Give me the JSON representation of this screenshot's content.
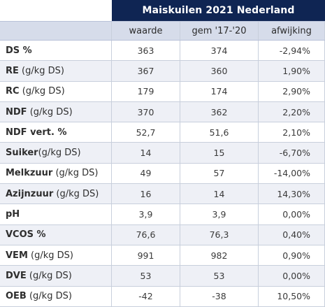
{
  "table": {
    "title": "Maiskuilen 2021 Nederland",
    "headers": [
      "waarde",
      "gem '17-'20",
      "afwijking"
    ],
    "rows": [
      {
        "name": "DS %",
        "unit": "",
        "waarde": "363",
        "gem": "374",
        "afwijking": "-2,94%"
      },
      {
        "name": "RE",
        "unit": " (g/kg DS)",
        "waarde": "367",
        "gem": "360",
        "afwijking": "1,90%"
      },
      {
        "name": "RC",
        "unit": " (g/kg DS)",
        "waarde": "179",
        "gem": "174",
        "afwijking": "2,90%"
      },
      {
        "name": "NDF",
        "unit": " (g/kg DS)",
        "waarde": "370",
        "gem": "362",
        "afwijking": "2,20%"
      },
      {
        "name": "NDF vert. %",
        "unit": "",
        "waarde": "52,7",
        "gem": "51,6",
        "afwijking": "2,10%"
      },
      {
        "name": "Suiker",
        "unit": "(g/kg DS)",
        "waarde": "14",
        "gem": "15",
        "afwijking": "-6,70%"
      },
      {
        "name": "Melkzuur",
        "unit": " (g/kg DS)",
        "waarde": "49",
        "gem": "57",
        "afwijking": "-14,00%"
      },
      {
        "name": "Azijnzuur",
        "unit": " (g/kg DS)",
        "waarde": "16",
        "gem": "14",
        "afwijking": "14,30%"
      },
      {
        "name": "pH",
        "unit": "",
        "waarde": "3,9",
        "gem": "3,9",
        "afwijking": "0,00%"
      },
      {
        "name": "VCOS %",
        "unit": "",
        "waarde": "76,6",
        "gem": "76,3",
        "afwijking": "0,40%"
      },
      {
        "name": "VEM",
        "unit": " (g/kg DS)",
        "waarde": "991",
        "gem": "982",
        "afwijking": "0,90%"
      },
      {
        "name": "DVE",
        "unit": " (g/kg DS)",
        "waarde": "53",
        "gem": "53",
        "afwijking": "0,00%"
      },
      {
        "name": "OEB",
        "unit": " (g/kg DS)",
        "waarde": "-42",
        "gem": "-38",
        "afwijking": "10,50%"
      }
    ]
  },
  "colors": {
    "title_bg": "#0f2553",
    "header_bg": "#d6dcea",
    "alt_row_bg": "#eef0f6"
  }
}
